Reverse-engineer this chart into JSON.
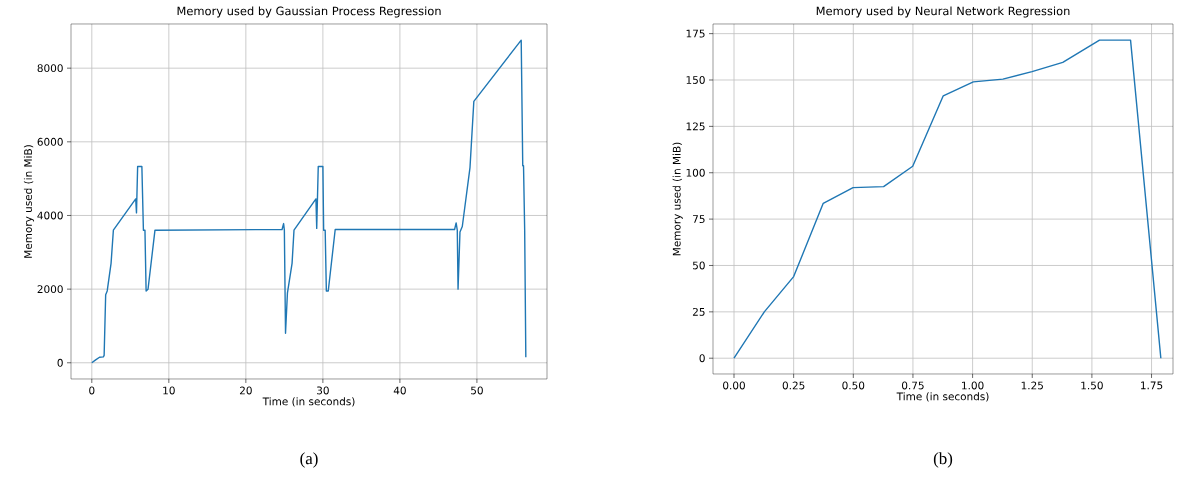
{
  "chart_data": [
    {
      "type": "line",
      "title": "Memory used by Gaussian Process Regression",
      "xlabel": "Time (in seconds)",
      "ylabel": "Memory used (in MiB)",
      "annotations": [
        "(a)"
      ],
      "x": [
        0,
        0.5,
        1,
        1.5,
        1.6,
        1.8,
        2.0,
        2.5,
        2.8,
        5.7,
        5.8,
        5.95,
        6.5,
        6.7,
        6.9,
        7.05,
        7.3,
        8.2,
        24.7,
        24.9,
        25.0,
        25.15,
        25.4,
        26.0,
        26.25,
        29.1,
        29.2,
        29.4,
        30.0,
        30.1,
        30.3,
        30.45,
        30.7,
        31.6,
        47.1,
        47.3,
        47.45,
        47.55,
        47.8,
        48.1,
        49.1,
        49.6,
        55.75,
        55.95,
        56.05,
        56.2,
        56.35
      ],
      "series": [
        {
          "color": "#1f77b4",
          "values": [
            0,
            80,
            150,
            160,
            200,
            1850,
            1950,
            2700,
            3600,
            4450,
            4070,
            5330,
            5330,
            3600,
            3600,
            1950,
            2000,
            3600,
            3620,
            3780,
            3600,
            800,
            1900,
            2700,
            3600,
            4450,
            3650,
            5330,
            5330,
            3600,
            3600,
            1950,
            1950,
            3620,
            3620,
            3800,
            3600,
            2000,
            3550,
            3700,
            5300,
            7100,
            8760,
            5350,
            5350,
            3600,
            150
          ]
        }
      ],
      "xlim": [
        -2.7,
        59.1
      ],
      "ylim": [
        -440,
        9200
      ],
      "xticks": [
        0,
        10,
        20,
        30,
        40,
        50
      ],
      "yticks": [
        0,
        2000,
        4000,
        6000,
        8000
      ],
      "grid": true
    },
    {
      "type": "line",
      "title": "Memory used by Neural Network Regression",
      "xlabel": "Time (in seconds)",
      "ylabel": "Memory used (in MiB)",
      "annotations": [
        "(b)"
      ],
      "x": [
        0,
        0.127,
        0.25,
        0.374,
        0.499,
        0.627,
        0.749,
        0.877,
        1.003,
        1.127,
        1.249,
        1.378,
        1.532,
        1.662,
        1.789
      ],
      "series": [
        {
          "color": "#1f77b4",
          "values": [
            0,
            25,
            44,
            83.5,
            92,
            92.5,
            103.5,
            141.5,
            149,
            150.5,
            154.5,
            159.5,
            171.5,
            171.5,
            0
          ]
        }
      ],
      "xlim": [
        -0.088,
        1.84
      ],
      "ylim": [
        -8.5,
        180.2
      ],
      "xticks": [
        {
          "value": 0,
          "label": "0.00"
        },
        0.25,
        {
          "value": 0.5,
          "label": "0.50"
        },
        0.75,
        {
          "value": 1,
          "label": "1.00"
        },
        1.25,
        {
          "value": 1.5,
          "label": "1.50"
        },
        1.75
      ],
      "yticks": [
        0,
        25,
        50,
        75,
        100,
        125,
        150,
        175
      ],
      "grid": true
    }
  ]
}
